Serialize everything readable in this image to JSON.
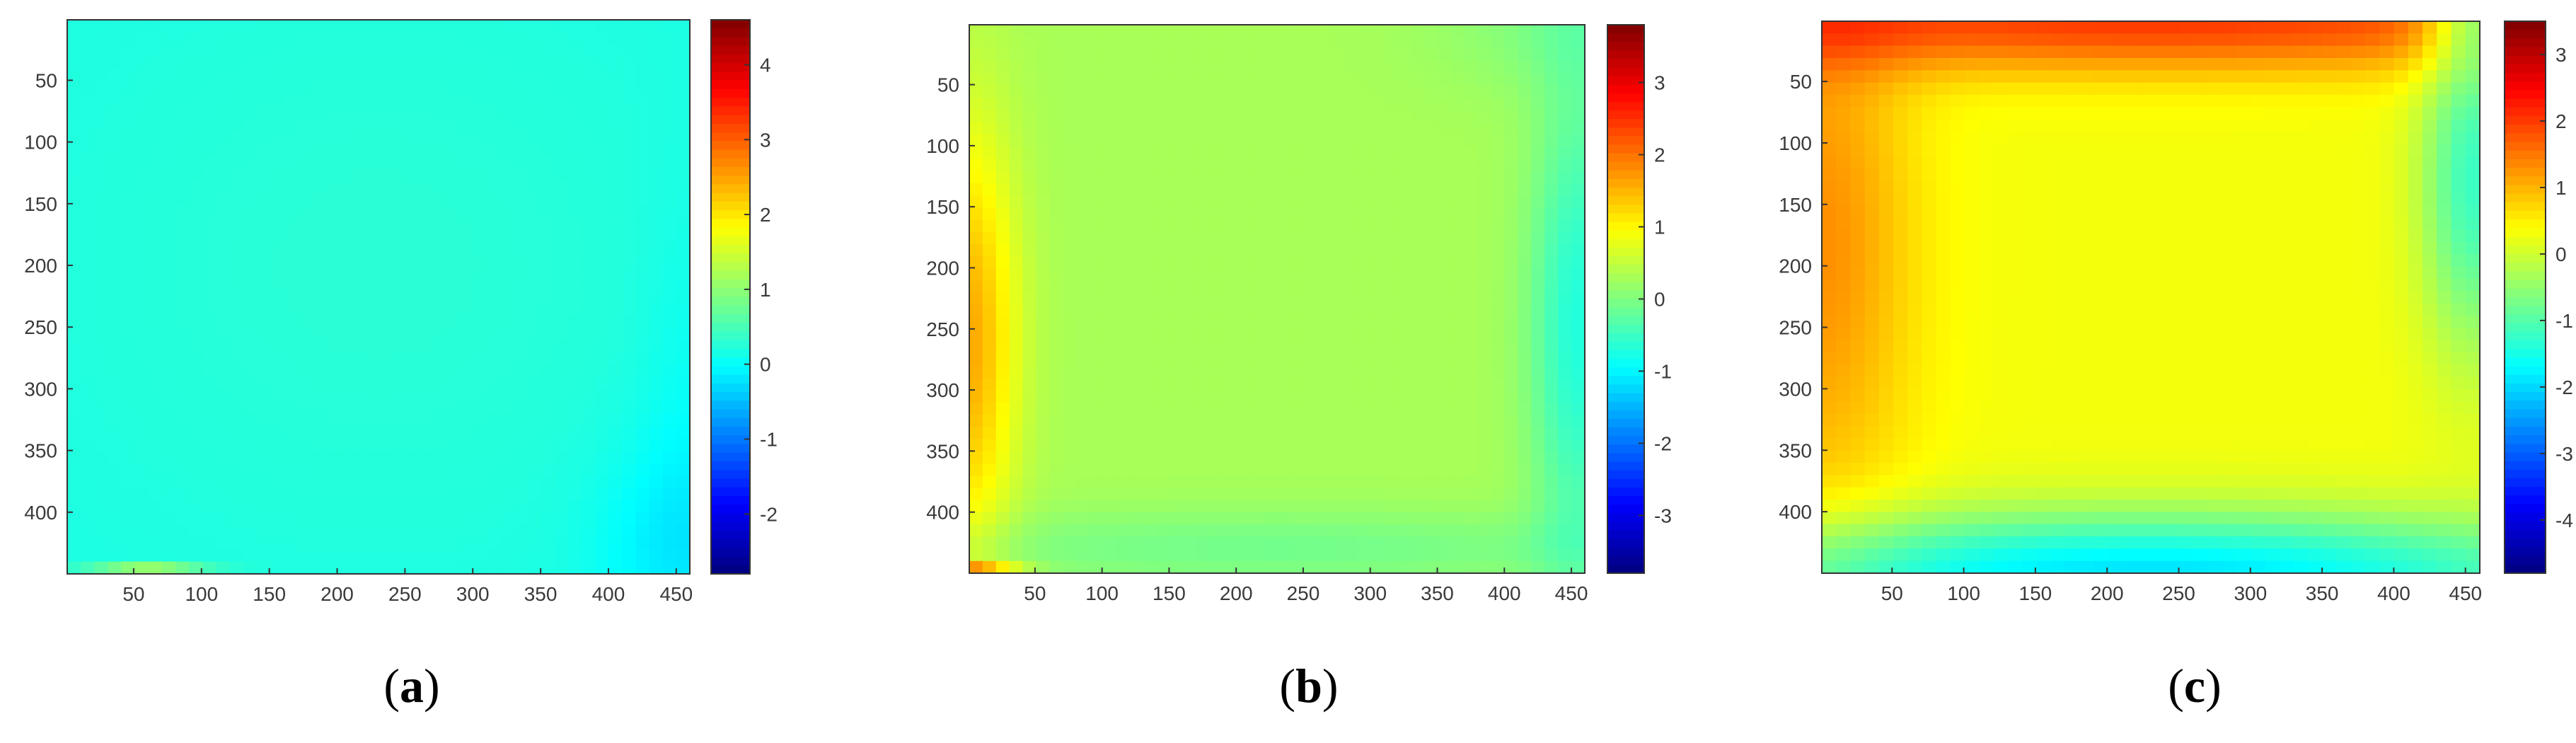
{
  "chart_data": [
    {
      "type": "heatmap",
      "panel_label": "a",
      "xticks": [
        50,
        100,
        150,
        200,
        250,
        300,
        350,
        400,
        450
      ],
      "yticks": [
        50,
        100,
        150,
        200,
        250,
        300,
        350,
        400
      ],
      "xlim": [
        1,
        460
      ],
      "ylim": [
        1,
        450
      ],
      "colorbar_ticks": [
        4,
        3,
        2,
        1,
        0,
        -1,
        -2
      ],
      "colorbar_range": [
        -2.8,
        4.6
      ],
      "colormap": "jet",
      "field": {
        "base": 0.15,
        "bumps": [
          {
            "x": 230,
            "y": 200,
            "sx": 200,
            "sy": 200,
            "v": 0.12
          },
          {
            "x": 445,
            "y": 430,
            "sx": 40,
            "sy": 60,
            "v": -0.3
          },
          {
            "x": 460,
            "y": 330,
            "sx": 25,
            "sy": 120,
            "v": -0.15
          },
          {
            "x": 60,
            "y": 448,
            "sx": 30,
            "sy": 3,
            "v": 1.4
          }
        ]
      }
    },
    {
      "type": "heatmap",
      "panel_label": "b",
      "xticks": [
        50,
        100,
        150,
        200,
        250,
        300,
        350,
        400,
        450
      ],
      "yticks": [
        50,
        100,
        150,
        200,
        250,
        300,
        350,
        400
      ],
      "xlim": [
        1,
        460
      ],
      "ylim": [
        1,
        450
      ],
      "colorbar_ticks": [
        3,
        2,
        1,
        0,
        -1,
        -2,
        -3
      ],
      "colorbar_range": [
        -3.8,
        3.8
      ],
      "colormap": "jet",
      "field": {
        "base": 0.3,
        "bumps": [
          {
            "x": 0,
            "y": 260,
            "sx": 25,
            "sy": 120,
            "v": 1.3
          },
          {
            "x": 455,
            "y": 250,
            "sx": 25,
            "sy": 140,
            "v": -1.0
          },
          {
            "x": 230,
            "y": 430,
            "sx": 220,
            "sy": 22,
            "v": -0.4
          },
          {
            "x": 460,
            "y": 0,
            "sx": 70,
            "sy": 40,
            "v": -0.35
          },
          {
            "x": 0,
            "y": 448,
            "sx": 25,
            "sy": 5,
            "v": 1.5
          }
        ]
      }
    },
    {
      "type": "heatmap",
      "panel_label": "c",
      "xticks": [
        50,
        100,
        150,
        200,
        250,
        300,
        350,
        400,
        450
      ],
      "yticks": [
        50,
        100,
        150,
        200,
        250,
        300,
        350,
        400
      ],
      "xlim": [
        1,
        460
      ],
      "ylim": [
        1,
        450
      ],
      "colorbar_ticks": [
        3,
        2,
        1,
        0,
        -1,
        -2,
        -3,
        -4
      ],
      "colorbar_range": [
        -4.8,
        3.5
      ],
      "colormap": "jet",
      "field": {
        "base": 0.3,
        "bumps": [
          {
            "x": 230,
            "y": 0,
            "sx": 300,
            "sy": 30,
            "v": 1.7
          },
          {
            "x": 0,
            "y": 180,
            "sx": 45,
            "sy": 160,
            "v": 1.0
          },
          {
            "x": 230,
            "y": 450,
            "sx": 240,
            "sy": 35,
            "v": -2.2
          },
          {
            "x": 455,
            "y": 130,
            "sx": 25,
            "sy": 100,
            "v": -1.5
          },
          {
            "x": 460,
            "y": 0,
            "sx": 25,
            "sy": 25,
            "v": -1.3
          }
        ]
      }
    }
  ]
}
